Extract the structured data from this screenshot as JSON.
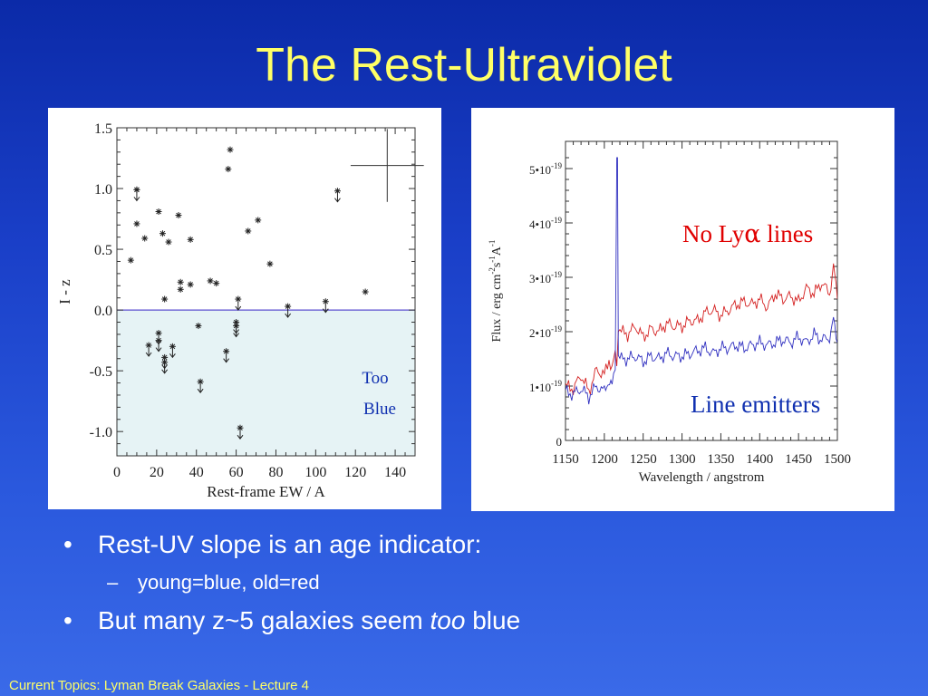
{
  "slide": {
    "title": "The Rest-Ultraviolet",
    "footer": "Current Topics:  Lyman Break Galaxies - Lecture 4",
    "bullets": {
      "b1": "Rest-UV slope is an age indicator:",
      "b2": "young=blue, old=red",
      "b3_pre": "But many z~5 galaxies seem ",
      "b3_em": "too",
      "b3_post": " blue"
    }
  },
  "colors": {
    "title": "#ffff66",
    "region_fill": "#e6f3f5",
    "zero_line": "#5b4fd0",
    "red_series": "#d42020",
    "blue_series": "#3030c0",
    "annot_red": "#e00000",
    "annot_blue": "#1030b0"
  },
  "chart_data": [
    {
      "type": "scatter",
      "xlabel": "Rest-frame EW / A",
      "ylabel": "I - z",
      "xlim": [
        0,
        150
      ],
      "ylim": [
        -1.2,
        1.5
      ],
      "xticks": [
        "0",
        "20",
        "40",
        "60",
        "80",
        "100",
        "120",
        "140"
      ],
      "yticks": [
        "1.5",
        "1.0",
        "0.5",
        "0.0",
        "-0.5",
        "-1.0"
      ],
      "region_label_1": "Too",
      "region_label_2": "Blue",
      "points": [
        {
          "x": 7,
          "y": 0.41
        },
        {
          "x": 10,
          "y": 0.71
        },
        {
          "x": 10,
          "y": 0.99
        },
        {
          "x": 14,
          "y": 0.59
        },
        {
          "x": 21,
          "y": 0.81
        },
        {
          "x": 23,
          "y": 0.63
        },
        {
          "x": 24,
          "y": 0.09
        },
        {
          "x": 26,
          "y": 0.56
        },
        {
          "x": 31,
          "y": 0.78
        },
        {
          "x": 32,
          "y": 0.23
        },
        {
          "x": 32,
          "y": 0.17
        },
        {
          "x": 37,
          "y": 0.21
        },
        {
          "x": 37,
          "y": 0.58
        },
        {
          "x": 41,
          "y": -0.13
        },
        {
          "x": 47,
          "y": 0.24
        },
        {
          "x": 50,
          "y": 0.22
        },
        {
          "x": 56,
          "y": 1.16
        },
        {
          "x": 57,
          "y": 1.32
        },
        {
          "x": 66,
          "y": 0.65
        },
        {
          "x": 71,
          "y": 0.74
        },
        {
          "x": 77,
          "y": 0.38
        },
        {
          "x": 125,
          "y": 0.15
        }
      ],
      "upper_limits": [
        {
          "x": 10,
          "y": 0.99
        },
        {
          "x": 16,
          "y": -0.29
        },
        {
          "x": 21,
          "y": -0.19
        },
        {
          "x": 21,
          "y": -0.25
        },
        {
          "x": 24,
          "y": -0.39
        },
        {
          "x": 24,
          "y": -0.43
        },
        {
          "x": 28,
          "y": -0.3
        },
        {
          "x": 42,
          "y": -0.59
        },
        {
          "x": 55,
          "y": -0.34
        },
        {
          "x": 60,
          "y": -0.1
        },
        {
          "x": 60,
          "y": -0.13
        },
        {
          "x": 61,
          "y": 0.09
        },
        {
          "x": 62,
          "y": -0.97
        },
        {
          "x": 86,
          "y": 0.03
        },
        {
          "x": 105,
          "y": 0.07
        },
        {
          "x": 111,
          "y": 0.98
        }
      ],
      "error_bar": {
        "x": 136,
        "y": 1.19,
        "dx": 8,
        "dy": 0.3
      }
    },
    {
      "type": "line",
      "xlabel": "Wavelength / angstrom",
      "ylabel": "Flux / erg cm-2s-1A-1",
      "ylabel_parts": [
        "Flux / erg cm",
        "-2",
        "s",
        "-1",
        "A",
        "-1"
      ],
      "xlim": [
        1150,
        1500
      ],
      "ylim": [
        0,
        5
      ],
      "xticks": [
        "1150",
        "1200",
        "1250",
        "1300",
        "1350",
        "1400",
        "1450",
        "1500"
      ],
      "yticks": [
        {
          "v": 5,
          "base": "5•10",
          "exp": "-19"
        },
        {
          "v": 4,
          "base": "4•10",
          "exp": "-19"
        },
        {
          "v": 3,
          "base": "3•10",
          "exp": "-19"
        },
        {
          "v": 2,
          "base": "2•10",
          "exp": "-19"
        },
        {
          "v": 1,
          "base": "1•10",
          "exp": "-19"
        },
        {
          "v": 0,
          "base": "0",
          "exp": ""
        }
      ],
      "annotation_red_pre": "No Ly",
      "annotation_red_greek": "α",
      "annotation_red_post": " lines",
      "annotation_blue": "Line emitters",
      "series": [
        {
          "color_key": "red_series",
          "x": [
            1150,
            1160,
            1170,
            1180,
            1190,
            1200,
            1206,
            1210,
            1214,
            1216,
            1218,
            1222,
            1230,
            1240,
            1250,
            1260,
            1270,
            1280,
            1290,
            1300,
            1310,
            1320,
            1330,
            1340,
            1350,
            1360,
            1370,
            1380,
            1390,
            1400,
            1410,
            1420,
            1430,
            1440,
            1450,
            1460,
            1470,
            1480,
            1490,
            1495,
            1500
          ],
          "y": [
            1.0,
            0.95,
            1.2,
            0.9,
            1.3,
            1.2,
            1.5,
            1.3,
            1.6,
            1.4,
            2.1,
            2.0,
            1.95,
            2.1,
            1.9,
            2.05,
            2.0,
            2.15,
            2.1,
            2.1,
            2.2,
            2.2,
            2.35,
            2.4,
            2.3,
            2.4,
            2.5,
            2.55,
            2.5,
            2.6,
            2.45,
            2.7,
            2.6,
            2.65,
            2.55,
            2.8,
            2.7,
            2.9,
            2.7,
            3.2,
            2.6
          ]
        },
        {
          "color_key": "blue_series",
          "x": [
            1150,
            1160,
            1170,
            1180,
            1190,
            1200,
            1205,
            1210,
            1214,
            1216,
            1217,
            1218,
            1220,
            1230,
            1240,
            1250,
            1260,
            1270,
            1280,
            1290,
            1300,
            1310,
            1320,
            1330,
            1340,
            1350,
            1360,
            1370,
            1380,
            1390,
            1400,
            1410,
            1420,
            1430,
            1440,
            1450,
            1460,
            1470,
            1480,
            1490,
            1495,
            1500
          ],
          "y": [
            0.9,
            0.85,
            0.95,
            0.8,
            1.0,
            0.9,
            1.1,
            1.0,
            1.3,
            5.2,
            5.2,
            1.6,
            1.5,
            1.5,
            1.55,
            1.45,
            1.55,
            1.5,
            1.6,
            1.55,
            1.55,
            1.6,
            1.65,
            1.7,
            1.6,
            1.7,
            1.7,
            1.75,
            1.7,
            1.75,
            1.8,
            1.75,
            1.8,
            1.85,
            1.8,
            1.9,
            1.8,
            1.95,
            1.85,
            1.9,
            2.2,
            1.8
          ]
        }
      ]
    }
  ]
}
